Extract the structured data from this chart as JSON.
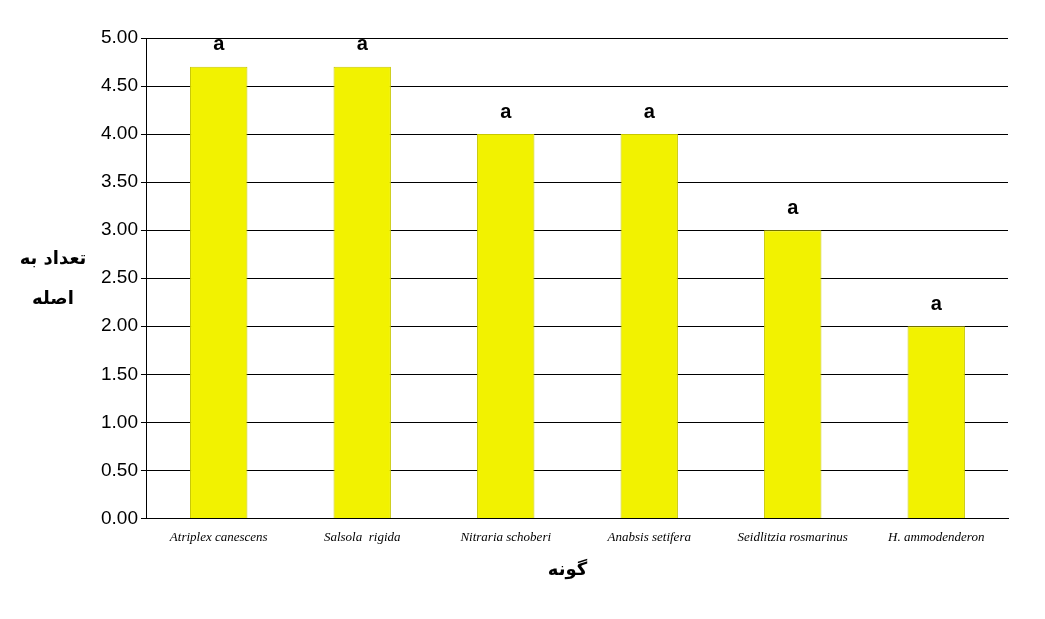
{
  "chart_data": {
    "type": "bar",
    "xlabel": "گونه",
    "ylabel": "تعداد به اصله",
    "categories": [
      "Atriplex canescens",
      "Salsola  rigida",
      "Nitraria schoberi",
      "Anabsis setifera",
      "Seidlitzia rosmarinus",
      "H. ammodenderon"
    ],
    "values": [
      4.7,
      4.7,
      4.0,
      4.0,
      3.0,
      2.0
    ],
    "color": "#f2f200",
    "ylim": [
      0,
      5
    ],
    "yticks": [
      {
        "value": 0,
        "label": "0.00"
      },
      {
        "value": 0.5,
        "label": "0.50"
      },
      {
        "value": 1,
        "label": "1.00"
      },
      {
        "value": 1.5,
        "label": "1.50"
      },
      {
        "value": 2,
        "label": "2.00"
      },
      {
        "value": 2.5,
        "label": "2.50"
      },
      {
        "value": 3,
        "label": "3.00"
      },
      {
        "value": 3.5,
        "label": "3.50"
      },
      {
        "value": 4,
        "label": "4.00"
      },
      {
        "value": 4.5,
        "label": "4.50"
      },
      {
        "value": 5,
        "label": "5.00"
      }
    ],
    "grid": "y",
    "annotations": [
      {
        "text": "a",
        "x": "Atriplex canescens",
        "y": 4.7
      },
      {
        "text": "a",
        "x": "Salsola  rigida",
        "y": 4.7
      },
      {
        "text": "a",
        "x": "Nitraria schoberi",
        "y": 4.0
      },
      {
        "text": "a",
        "x": "Anabsis setifera",
        "y": 4.0
      },
      {
        "text": "a",
        "x": "Seidlitzia rosmarinus",
        "y": 3.0
      },
      {
        "text": "a",
        "x": "H. ammodenderon",
        "y": 2.0
      }
    ]
  }
}
